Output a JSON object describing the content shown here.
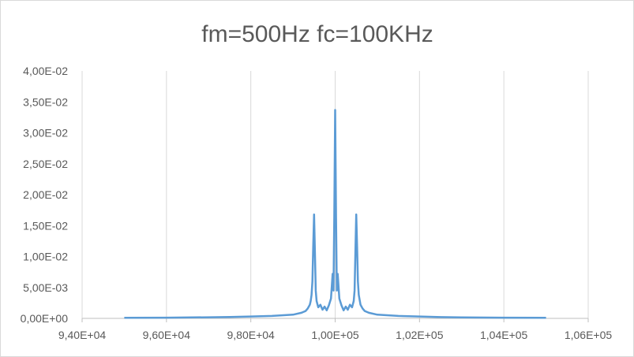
{
  "chart_data": {
    "type": "line",
    "title": "fm=500Hz fc=100KHz",
    "xlabel": "",
    "ylabel": "",
    "xlim": [
      94000,
      106000
    ],
    "ylim": [
      0,
      0.04
    ],
    "x_ticks": [
      94000,
      96000,
      98000,
      100000,
      102000,
      104000,
      106000
    ],
    "x_tick_labels": [
      "9,40E+04",
      "9,60E+04",
      "9,80E+04",
      "1,00E+05",
      "1,02E+05",
      "1,04E+05",
      "1,06E+05"
    ],
    "y_ticks": [
      0,
      0.005,
      0.01,
      0.015,
      0.02,
      0.025,
      0.03,
      0.035,
      0.04
    ],
    "y_tick_labels": [
      "0,00E+00",
      "5,00E-03",
      "1,00E-02",
      "1,50E-02",
      "2,00E-02",
      "2,50E-02",
      "3,00E-02",
      "3,50E-02",
      "4,00E-02"
    ],
    "grid": {
      "vertical": true,
      "horizontal": false
    },
    "legend": "none",
    "series_color": "#5b9bd5",
    "grid_color": "#d9d9d9",
    "axis_color": "#bfbfbf",
    "series": [
      {
        "x": [
          95000,
          96000,
          97000,
          97500,
          98000,
          98500,
          99000,
          99200,
          99300,
          99350,
          99400,
          99420,
          99440,
          99460,
          99480,
          99500,
          99520,
          99540,
          99560,
          99600,
          99650,
          99700,
          99750,
          99800,
          99850,
          99900,
          99940,
          99960,
          99980,
          100000,
          100020,
          100040,
          100060,
          100100,
          100150,
          100200,
          100250,
          100300,
          100350,
          100400,
          100440,
          100460,
          100480,
          100500,
          100520,
          100540,
          100560,
          100600,
          100650,
          100700,
          100800,
          101000,
          101500,
          102000,
          102500,
          103000,
          104000,
          105000
        ],
        "values": [
          0.0001,
          0.00012,
          0.00018,
          0.00022,
          0.0003,
          0.0004,
          0.0006,
          0.0009,
          0.0012,
          0.0016,
          0.0022,
          0.0028,
          0.0038,
          0.006,
          0.0115,
          0.0168,
          0.0105,
          0.0045,
          0.0028,
          0.0018,
          0.0022,
          0.0014,
          0.0019,
          0.0013,
          0.0021,
          0.0032,
          0.0072,
          0.0045,
          0.0165,
          0.0337,
          0.0165,
          0.0045,
          0.0072,
          0.0032,
          0.0021,
          0.0013,
          0.0019,
          0.0014,
          0.0022,
          0.0018,
          0.0028,
          0.0045,
          0.0105,
          0.0168,
          0.0115,
          0.006,
          0.0038,
          0.0022,
          0.0016,
          0.0012,
          0.0009,
          0.0006,
          0.0004,
          0.0003,
          0.0002,
          0.00015,
          0.00012,
          0.0001
        ]
      }
    ]
  }
}
